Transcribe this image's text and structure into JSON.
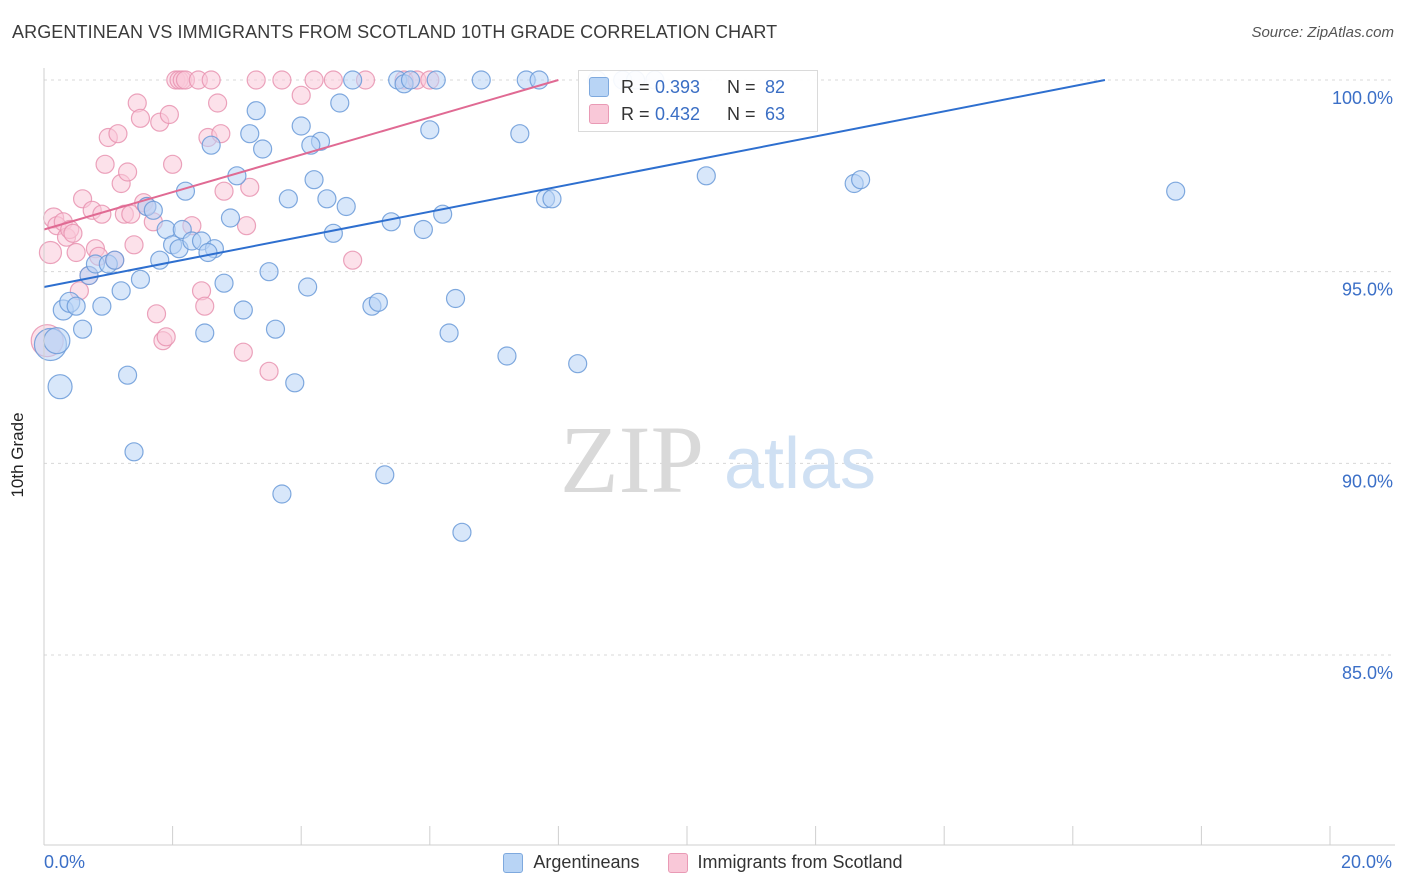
{
  "header": {
    "title": "ARGENTINEAN VS IMMIGRANTS FROM SCOTLAND 10TH GRADE CORRELATION CHART",
    "source": "Source: ZipAtlas.com"
  },
  "watermark": {
    "part1": "ZIP",
    "part2": "atlas"
  },
  "stats": {
    "r_label": "R =",
    "n_label": "N =",
    "series1": {
      "r": "0.393",
      "n": "82"
    },
    "series2": {
      "r": "0.432",
      "n": "63"
    }
  },
  "colors": {
    "blue_fill": "#b8d4f5",
    "blue_stroke": "#6a9ad8",
    "blue_line": "#2e6fcf",
    "pink_fill": "#f9c8d8",
    "pink_stroke": "#e893b0",
    "pink_line": "#e06a93",
    "tick_label": "#3b6fc7",
    "grid": "#d8d8d8"
  },
  "chart_data": {
    "type": "scatter",
    "title": "ARGENTINEAN VS IMMIGRANTS FROM SCOTLAND 10TH GRADE CORRELATION CHART",
    "xlabel": "",
    "ylabel": "10th Grade",
    "xlim": [
      0,
      20
    ],
    "ylim": [
      80,
      100.5
    ],
    "x_tick_labels": [
      "0.0%",
      "20.0%"
    ],
    "y_ticks": [
      85,
      90,
      95,
      100
    ],
    "y_tick_labels": [
      "85.0%",
      "90.0%",
      "95.0%",
      "100.0%"
    ],
    "grid": true,
    "legend_position": "top-center",
    "series": [
      {
        "name": "Argentineans",
        "color": "#6a9ad8",
        "r": 0.393,
        "n": 82,
        "trend": {
          "x": [
            0,
            16.5
          ],
          "y": [
            94.6,
            100.0
          ]
        },
        "points": [
          [
            0.1,
            93.1,
            16
          ],
          [
            0.2,
            93.2,
            13
          ],
          [
            0.25,
            92.0,
            12
          ],
          [
            0.3,
            94.0,
            10
          ],
          [
            0.4,
            94.2,
            10
          ],
          [
            0.5,
            94.1,
            9
          ],
          [
            0.6,
            93.5,
            9
          ],
          [
            0.7,
            94.9,
            9
          ],
          [
            0.8,
            95.2,
            9
          ],
          [
            0.9,
            94.1,
            9
          ],
          [
            1.0,
            95.2,
            9
          ],
          [
            1.1,
            95.3,
            9
          ],
          [
            1.2,
            94.5,
            9
          ],
          [
            1.3,
            92.3,
            9
          ],
          [
            1.4,
            90.3,
            9
          ],
          [
            1.5,
            94.8,
            9
          ],
          [
            1.6,
            96.7,
            9
          ],
          [
            1.7,
            96.6,
            9
          ],
          [
            1.8,
            95.3,
            9
          ],
          [
            1.9,
            96.1,
            9
          ],
          [
            2.0,
            95.7,
            9
          ],
          [
            2.1,
            95.6,
            9
          ],
          [
            2.15,
            96.1,
            9
          ],
          [
            2.2,
            97.1,
            9
          ],
          [
            2.3,
            95.8,
            9
          ],
          [
            2.45,
            95.8,
            9
          ],
          [
            2.5,
            93.4,
            9
          ],
          [
            2.6,
            98.3,
            9
          ],
          [
            2.65,
            95.6,
            9
          ],
          [
            2.8,
            94.7,
            9
          ],
          [
            2.9,
            96.4,
            9
          ],
          [
            3.0,
            97.5,
            9
          ],
          [
            3.1,
            94.0,
            9
          ],
          [
            3.2,
            98.6,
            9
          ],
          [
            3.3,
            99.2,
            9
          ],
          [
            3.4,
            98.2,
            9
          ],
          [
            3.5,
            95.0,
            9
          ],
          [
            3.6,
            93.5,
            9
          ],
          [
            3.7,
            89.2,
            9
          ],
          [
            3.8,
            96.9,
            9
          ],
          [
            3.9,
            92.1,
            9
          ],
          [
            4.0,
            98.8,
            9
          ],
          [
            4.1,
            94.6,
            9
          ],
          [
            4.2,
            97.4,
            9
          ],
          [
            4.3,
            98.4,
            9
          ],
          [
            4.4,
            96.9,
            9
          ],
          [
            4.5,
            96.0,
            9
          ],
          [
            4.6,
            99.4,
            9
          ],
          [
            4.7,
            96.7,
            9
          ],
          [
            4.8,
            100.0,
            9
          ],
          [
            5.1,
            94.1,
            9
          ],
          [
            5.2,
            94.2,
            9
          ],
          [
            5.3,
            89.7,
            9
          ],
          [
            5.4,
            96.3,
            9
          ],
          [
            5.5,
            100.0,
            9
          ],
          [
            5.6,
            99.9,
            9
          ],
          [
            5.7,
            100.0,
            9
          ],
          [
            5.9,
            96.1,
            9
          ],
          [
            6.0,
            98.7,
            9
          ],
          [
            6.1,
            100.0,
            9
          ],
          [
            6.2,
            96.5,
            9
          ],
          [
            6.3,
            93.4,
            9
          ],
          [
            6.4,
            94.3,
            9
          ],
          [
            6.5,
            88.2,
            9
          ],
          [
            6.8,
            100.0,
            9
          ],
          [
            7.2,
            92.8,
            9
          ],
          [
            7.4,
            98.6,
            9
          ],
          [
            7.5,
            100.0,
            9
          ],
          [
            7.7,
            100.0,
            9
          ],
          [
            7.8,
            96.9,
            9
          ],
          [
            7.9,
            96.9,
            9
          ],
          [
            8.3,
            92.6,
            9
          ],
          [
            8.6,
            100.0,
            9
          ],
          [
            9.0,
            100.0,
            9
          ],
          [
            9.2,
            100.0,
            9
          ],
          [
            9.5,
            100.0,
            9
          ],
          [
            10.3,
            97.5,
            9
          ],
          [
            12.6,
            97.3,
            9
          ],
          [
            12.7,
            97.4,
            9
          ],
          [
            17.6,
            97.1,
            9
          ],
          [
            4.15,
            98.3,
            9
          ],
          [
            2.55,
            95.5,
            9
          ]
        ]
      },
      {
        "name": "Immigrants from Scotland",
        "color": "#e893b0",
        "r": 0.432,
        "n": 63,
        "trend": {
          "x": [
            0,
            8.0
          ],
          "y": [
            96.1,
            100.0
          ]
        },
        "points": [
          [
            0.05,
            93.2,
            16
          ],
          [
            0.1,
            95.5,
            11
          ],
          [
            0.15,
            96.4,
            10
          ],
          [
            0.2,
            96.2,
            9
          ],
          [
            0.3,
            96.3,
            9
          ],
          [
            0.35,
            95.9,
            9
          ],
          [
            0.4,
            96.1,
            9
          ],
          [
            0.45,
            96.0,
            9
          ],
          [
            0.5,
            95.5,
            9
          ],
          [
            0.55,
            94.5,
            9
          ],
          [
            0.6,
            96.9,
            9
          ],
          [
            0.7,
            94.9,
            9
          ],
          [
            0.75,
            96.6,
            9
          ],
          [
            0.8,
            95.6,
            9
          ],
          [
            0.85,
            95.4,
            9
          ],
          [
            0.9,
            96.5,
            9
          ],
          [
            0.95,
            97.8,
            9
          ],
          [
            1.0,
            98.5,
            9
          ],
          [
            1.1,
            95.3,
            9
          ],
          [
            1.15,
            98.6,
            9
          ],
          [
            1.2,
            97.3,
            9
          ],
          [
            1.25,
            96.5,
            9
          ],
          [
            1.3,
            97.6,
            9
          ],
          [
            1.35,
            96.5,
            9
          ],
          [
            1.4,
            95.7,
            9
          ],
          [
            1.45,
            99.4,
            9
          ],
          [
            1.5,
            99.0,
            9
          ],
          [
            1.55,
            96.8,
            9
          ],
          [
            1.6,
            96.7,
            9
          ],
          [
            1.7,
            96.3,
            9
          ],
          [
            1.75,
            93.9,
            9
          ],
          [
            1.8,
            98.9,
            9
          ],
          [
            1.85,
            93.2,
            9
          ],
          [
            1.9,
            93.3,
            9
          ],
          [
            1.95,
            99.1,
            9
          ],
          [
            2.0,
            97.8,
            9
          ],
          [
            2.05,
            100.0,
            9
          ],
          [
            2.1,
            100.0,
            9
          ],
          [
            2.15,
            100.0,
            9
          ],
          [
            2.2,
            100.0,
            9
          ],
          [
            2.3,
            96.2,
            9
          ],
          [
            2.4,
            100.0,
            9
          ],
          [
            2.45,
            94.5,
            9
          ],
          [
            2.5,
            94.1,
            9
          ],
          [
            2.55,
            98.5,
            9
          ],
          [
            2.6,
            100.0,
            9
          ],
          [
            2.7,
            99.4,
            9
          ],
          [
            2.75,
            98.6,
            9
          ],
          [
            2.8,
            97.1,
            9
          ],
          [
            3.1,
            92.9,
            9
          ],
          [
            3.15,
            96.2,
            9
          ],
          [
            3.2,
            97.2,
            9
          ],
          [
            3.3,
            100.0,
            9
          ],
          [
            3.5,
            92.4,
            9
          ],
          [
            3.7,
            100.0,
            9
          ],
          [
            4.0,
            99.6,
            9
          ],
          [
            4.2,
            100.0,
            9
          ],
          [
            4.5,
            100.0,
            9
          ],
          [
            4.8,
            95.3,
            9
          ],
          [
            5.0,
            100.0,
            9
          ],
          [
            5.6,
            100.0,
            9
          ],
          [
            5.8,
            100.0,
            9
          ],
          [
            6.0,
            100.0,
            9
          ]
        ]
      }
    ]
  }
}
